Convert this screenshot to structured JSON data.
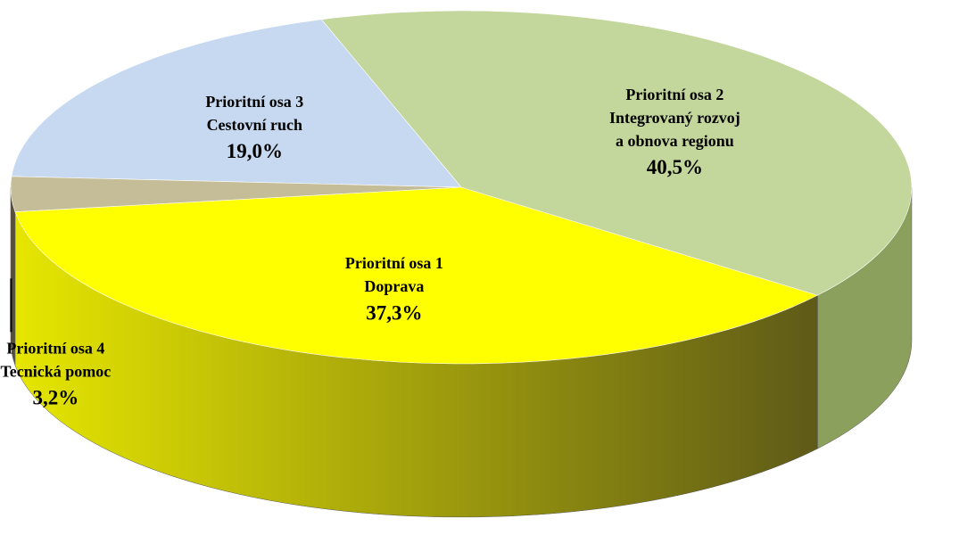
{
  "chart_data": {
    "type": "pie3d",
    "categories": [
      [
        "Prioritní osa 1",
        "Doprava"
      ],
      [
        "Prioritní osa 2",
        "Integrovaný  rozvoj",
        "a obnova  regionu"
      ],
      [
        "Prioritní osa 3",
        "Cestovní  ruch"
      ],
      [
        "Prioritní osa 4",
        "Tecnická pomoc"
      ]
    ],
    "values": [
      37.3,
      40.5,
      19.0,
      3.2
    ],
    "value_labels": [
      "37,3%",
      "40,5%",
      "19,0%",
      "3,2%"
    ],
    "colors": [
      "#ffff00",
      "#c3d69b",
      "#c6d9f0",
      "#c4bd97"
    ]
  }
}
